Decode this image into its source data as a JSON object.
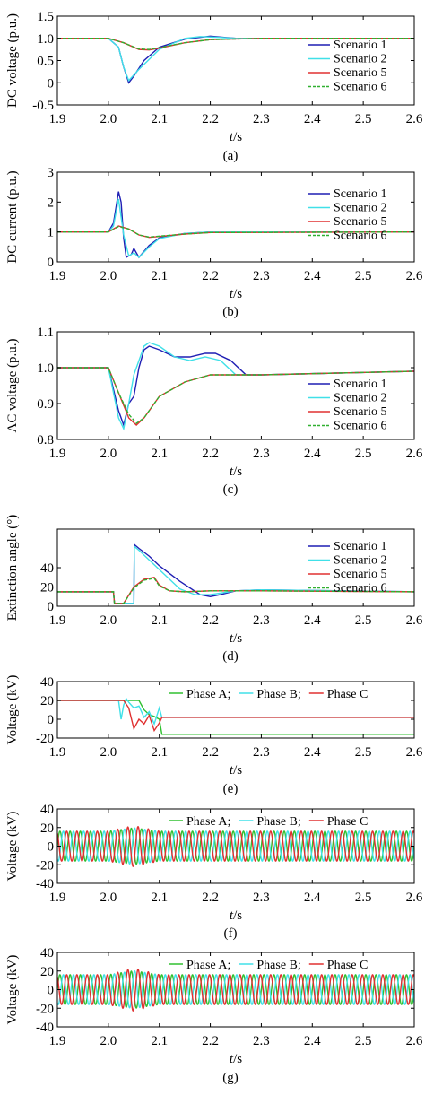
{
  "chart_data": [
    {
      "type": "line",
      "panel_label": "(a)",
      "ylabel": "DC voltage (p.u.)",
      "xlabel_italic": "t",
      "xlabel_unit": "/s",
      "xlim": [
        1.9,
        2.6
      ],
      "ylim": [
        -0.5,
        1.5
      ],
      "xticks": [
        "1.9",
        "2.0",
        "2.1",
        "2.2",
        "2.3",
        "2.4",
        "2.5",
        "2.6"
      ],
      "yticks": [
        "1.5",
        "1.0",
        "0.5",
        "0",
        "-0.5"
      ],
      "legend": "right",
      "series": [
        {
          "name": "Scenario 1",
          "color": "#1f1fb4",
          "dash": false,
          "x": [
            1.9,
            2.0,
            2.02,
            2.03,
            2.04,
            2.05,
            2.07,
            2.1,
            2.15,
            2.2,
            2.23,
            2.25,
            2.3,
            2.6
          ],
          "y": [
            1.0,
            1.0,
            0.8,
            0.35,
            0.0,
            0.15,
            0.5,
            0.8,
            0.98,
            1.05,
            1.02,
            1.0,
            1.0,
            1.0
          ]
        },
        {
          "name": "Scenario 2",
          "color": "#40e0e8",
          "dash": false,
          "x": [
            1.9,
            2.0,
            2.02,
            2.03,
            2.04,
            2.06,
            2.1,
            2.15,
            2.18,
            2.22,
            2.25,
            2.3,
            2.6
          ],
          "y": [
            1.0,
            1.0,
            0.8,
            0.35,
            0.05,
            0.3,
            0.75,
            1.0,
            1.04,
            1.02,
            1.0,
            1.0,
            1.0
          ]
        },
        {
          "name": "Scenario 5",
          "color": "#e03030",
          "dash": false,
          "x": [
            1.9,
            2.0,
            2.03,
            2.06,
            2.08,
            2.1,
            2.15,
            2.2,
            2.3,
            2.6
          ],
          "y": [
            1.0,
            1.0,
            0.9,
            0.75,
            0.74,
            0.78,
            0.9,
            0.97,
            1.0,
            1.0
          ]
        },
        {
          "name": "Scenario 6",
          "color": "#30b030",
          "dash": true,
          "x": [
            1.9,
            2.0,
            2.03,
            2.06,
            2.08,
            2.1,
            2.15,
            2.2,
            2.3,
            2.6
          ],
          "y": [
            1.0,
            1.0,
            0.9,
            0.76,
            0.75,
            0.79,
            0.9,
            0.97,
            1.0,
            1.0
          ]
        }
      ]
    },
    {
      "type": "line",
      "panel_label": "(b)",
      "ylabel": "DC current (p.u.)",
      "xlabel_italic": "t",
      "xlabel_unit": "/s",
      "xlim": [
        1.9,
        2.6
      ],
      "ylim": [
        0,
        3
      ],
      "xticks": [
        "1.9",
        "2.0",
        "2.1",
        "2.2",
        "2.3",
        "2.4",
        "2.5",
        "2.6"
      ],
      "yticks": [
        "3",
        "2",
        "1",
        "0"
      ],
      "legend": "right",
      "series": [
        {
          "name": "Scenario 1",
          "color": "#1f1fb4",
          "dash": false,
          "x": [
            1.9,
            2.0,
            2.01,
            2.02,
            2.025,
            2.03,
            2.035,
            2.045,
            2.05,
            2.06,
            2.08,
            2.1,
            2.15,
            2.2,
            2.6
          ],
          "y": [
            1.0,
            1.0,
            1.3,
            2.35,
            2.0,
            0.8,
            0.15,
            0.25,
            0.45,
            0.15,
            0.55,
            0.8,
            0.95,
            1.0,
            1.0
          ]
        },
        {
          "name": "Scenario 2",
          "color": "#40e0e8",
          "dash": false,
          "x": [
            1.9,
            2.0,
            2.01,
            2.02,
            2.03,
            2.04,
            2.05,
            2.06,
            2.08,
            2.1,
            2.15,
            2.2,
            2.6
          ],
          "y": [
            1.0,
            1.0,
            1.2,
            2.1,
            0.9,
            0.2,
            0.3,
            0.15,
            0.5,
            0.78,
            0.95,
            1.0,
            1.0
          ]
        },
        {
          "name": "Scenario 5",
          "color": "#e03030",
          "dash": false,
          "x": [
            1.9,
            2.0,
            2.02,
            2.04,
            2.06,
            2.08,
            2.1,
            2.15,
            2.2,
            2.6
          ],
          "y": [
            1.0,
            1.0,
            1.2,
            1.1,
            0.9,
            0.82,
            0.85,
            0.93,
            0.98,
            1.0
          ]
        },
        {
          "name": "Scenario 6",
          "color": "#30b030",
          "dash": true,
          "x": [
            1.9,
            2.0,
            2.02,
            2.04,
            2.06,
            2.08,
            2.1,
            2.15,
            2.2,
            2.6
          ],
          "y": [
            1.0,
            1.0,
            1.18,
            1.1,
            0.9,
            0.83,
            0.86,
            0.93,
            0.98,
            1.0
          ]
        }
      ]
    },
    {
      "type": "line",
      "panel_label": "(c)",
      "ylabel": "AC voltage (p.u.)",
      "xlabel_italic": "t",
      "xlabel_unit": "/s",
      "xlim": [
        1.9,
        2.6
      ],
      "ylim": [
        0.8,
        1.1
      ],
      "xticks": [
        "1.9",
        "2.0",
        "2.1",
        "2.2",
        "2.3",
        "2.4",
        "2.5",
        "2.6"
      ],
      "yticks": [
        "1.1",
        "1.0",
        "0.9",
        "0.8"
      ],
      "legend": "right",
      "series": [
        {
          "name": "Scenario 1",
          "color": "#1f1fb4",
          "dash": false,
          "x": [
            1.9,
            2.0,
            2.02,
            2.03,
            2.04,
            2.05,
            2.06,
            2.07,
            2.08,
            2.1,
            2.13,
            2.16,
            2.19,
            2.21,
            2.24,
            2.27,
            2.3,
            2.6
          ],
          "y": [
            1.0,
            1.0,
            0.88,
            0.84,
            0.9,
            0.92,
            1.0,
            1.05,
            1.06,
            1.05,
            1.03,
            1.03,
            1.04,
            1.04,
            1.02,
            0.98,
            0.98,
            0.99
          ]
        },
        {
          "name": "Scenario 2",
          "color": "#40e0e8",
          "dash": false,
          "x": [
            1.9,
            2.0,
            2.02,
            2.03,
            2.04,
            2.05,
            2.07,
            2.08,
            2.1,
            2.13,
            2.16,
            2.19,
            2.22,
            2.25,
            2.3,
            2.6
          ],
          "y": [
            1.0,
            1.0,
            0.86,
            0.83,
            0.9,
            0.98,
            1.06,
            1.07,
            1.06,
            1.03,
            1.02,
            1.03,
            1.02,
            0.98,
            0.98,
            0.99
          ]
        },
        {
          "name": "Scenario 5",
          "color": "#e03030",
          "dash": false,
          "x": [
            1.9,
            2.0,
            2.02,
            2.04,
            2.055,
            2.07,
            2.1,
            2.15,
            2.2,
            2.25,
            2.3,
            2.6
          ],
          "y": [
            1.0,
            1.0,
            0.93,
            0.86,
            0.84,
            0.86,
            0.92,
            0.96,
            0.98,
            0.98,
            0.98,
            0.99
          ]
        },
        {
          "name": "Scenario 6",
          "color": "#30b030",
          "dash": true,
          "x": [
            1.9,
            2.0,
            2.02,
            2.04,
            2.055,
            2.07,
            2.1,
            2.15,
            2.2,
            2.25,
            2.3,
            2.6
          ],
          "y": [
            1.0,
            1.0,
            0.93,
            0.87,
            0.845,
            0.86,
            0.92,
            0.96,
            0.98,
            0.98,
            0.98,
            0.99
          ]
        }
      ]
    },
    {
      "type": "line",
      "panel_label": "(d)",
      "ylabel": "Extinction angle (°)",
      "xlabel_italic": "t",
      "xlabel_unit": "/s",
      "xlim": [
        1.9,
        2.6
      ],
      "ylim": [
        0,
        80
      ],
      "xticks": [
        "1.9",
        "2.0",
        "2.1",
        "2.2",
        "2.3",
        "2.4",
        "2.5",
        "2.6"
      ],
      "yticks": [
        "40",
        "20",
        "0"
      ],
      "legend": "right",
      "series": [
        {
          "name": "Scenario 1",
          "color": "#1f1fb4",
          "dash": false,
          "x": [
            1.9,
            2.01,
            2.012,
            2.05,
            2.051,
            2.06,
            2.08,
            2.1,
            2.14,
            2.18,
            2.2,
            2.22,
            2.25,
            2.3,
            2.6
          ],
          "y": [
            15,
            15,
            3,
            3,
            64,
            60,
            52,
            42,
            26,
            12,
            10,
            12,
            16,
            17,
            15
          ]
        },
        {
          "name": "Scenario 2",
          "color": "#40e0e8",
          "dash": false,
          "x": [
            1.9,
            2.01,
            2.012,
            2.05,
            2.051,
            2.06,
            2.08,
            2.1,
            2.14,
            2.17,
            2.2,
            2.25,
            2.3,
            2.6
          ],
          "y": [
            15,
            15,
            3,
            3,
            62,
            58,
            48,
            38,
            18,
            12,
            12,
            16,
            17,
            15
          ]
        },
        {
          "name": "Scenario 5",
          "color": "#e03030",
          "dash": false,
          "x": [
            1.9,
            2.01,
            2.012,
            2.03,
            2.05,
            2.07,
            2.09,
            2.1,
            2.12,
            2.15,
            2.2,
            2.3,
            2.6
          ],
          "y": [
            15,
            15,
            3,
            3,
            20,
            28,
            30,
            22,
            16,
            15,
            16,
            16,
            15
          ]
        },
        {
          "name": "Scenario 6",
          "color": "#30b030",
          "dash": true,
          "x": [
            1.9,
            2.01,
            2.012,
            2.03,
            2.05,
            2.07,
            2.09,
            2.1,
            2.12,
            2.15,
            2.2,
            2.3,
            2.6
          ],
          "y": [
            15,
            15,
            3,
            3,
            19,
            27,
            29,
            21,
            16,
            15,
            16,
            16,
            15
          ]
        }
      ]
    },
    {
      "type": "line",
      "panel_label": "(e)",
      "ylabel": "Voltage (kV)",
      "xlabel_italic": "t",
      "xlabel_unit": "/s",
      "xlim": [
        1.9,
        2.6
      ],
      "ylim": [
        -20,
        40
      ],
      "xticks": [
        "1.9",
        "2.0",
        "2.1",
        "2.2",
        "2.3",
        "2.4",
        "2.5",
        "2.6"
      ],
      "yticks": [
        "40",
        "20",
        "0",
        "-20"
      ],
      "legend": "top",
      "series": [
        {
          "name": "Phase A;",
          "color": "#30c030",
          "dash": false,
          "x": [
            1.9,
            2.06,
            2.07,
            2.08,
            2.09,
            2.1,
            2.105,
            2.6
          ],
          "y": [
            20,
            20,
            10,
            5,
            3,
            0,
            -16,
            -16
          ]
        },
        {
          "name": "Phase B;",
          "color": "#40e0e8",
          "dash": false,
          "x": [
            1.9,
            2.02,
            2.025,
            2.03,
            2.035,
            2.04,
            2.05,
            2.06,
            2.07,
            2.08,
            2.09,
            2.1,
            2.105,
            2.6
          ],
          "y": [
            20,
            20,
            0,
            15,
            22,
            18,
            12,
            14,
            2,
            8,
            -5,
            12,
            2,
            2
          ]
        },
        {
          "name": "Phase C",
          "color": "#e03030",
          "dash": false,
          "x": [
            1.9,
            2.03,
            2.04,
            2.05,
            2.06,
            2.07,
            2.08,
            2.09,
            2.1,
            2.105,
            2.6
          ],
          "y": [
            20,
            20,
            12,
            -10,
            0,
            -5,
            4,
            -12,
            -4,
            2,
            2
          ]
        }
      ]
    },
    {
      "type": "line",
      "panel_label": "(f)",
      "ylabel": "Voltage (kV)",
      "xlabel_italic": "t",
      "xlabel_unit": "/s",
      "xlim": [
        1.9,
        2.6
      ],
      "ylim": [
        -40,
        40
      ],
      "xticks": [
        "1.9",
        "2.0",
        "2.1",
        "2.2",
        "2.3",
        "2.4",
        "2.5",
        "2.6"
      ],
      "yticks": [
        "40",
        "20",
        "0",
        "-20",
        "-40"
      ],
      "legend": "top",
      "waveform": {
        "frequency_hz": 50,
        "amplitude_kv": 16,
        "disturbance_peak_kv": 22,
        "disturbance_start_s": 2.0,
        "disturbance_end_s": 2.1
      },
      "series": [
        {
          "name": "Phase A;",
          "color": "#30c030",
          "dash": false,
          "phase_deg": 0
        },
        {
          "name": "Phase B;",
          "color": "#40e0e8",
          "dash": false,
          "phase_deg": -120
        },
        {
          "name": "Phase C",
          "color": "#e03030",
          "dash": false,
          "phase_deg": 120
        }
      ]
    },
    {
      "type": "line",
      "panel_label": "(g)",
      "ylabel": "Voltage (kV)",
      "xlabel_italic": "t",
      "xlabel_unit": "/s",
      "xlim": [
        1.9,
        2.6
      ],
      "ylim": [
        -40,
        40
      ],
      "xticks": [
        "1.9",
        "2.0",
        "2.1",
        "2.2",
        "2.3",
        "2.4",
        "2.5",
        "2.6"
      ],
      "yticks": [
        "40",
        "20",
        "0",
        "-20",
        "-40"
      ],
      "legend": "top",
      "waveform": {
        "frequency_hz": 50,
        "amplitude_kv": 16,
        "disturbance_peak_kv": 23,
        "disturbance_start_s": 2.0,
        "disturbance_end_s": 2.1
      },
      "series": [
        {
          "name": "Phase A;",
          "color": "#30c030",
          "dash": false,
          "phase_deg": 0
        },
        {
          "name": "Phase B;",
          "color": "#40e0e8",
          "dash": false,
          "phase_deg": -120
        },
        {
          "name": "Phase C",
          "color": "#e03030",
          "dash": false,
          "phase_deg": 120
        }
      ]
    }
  ]
}
